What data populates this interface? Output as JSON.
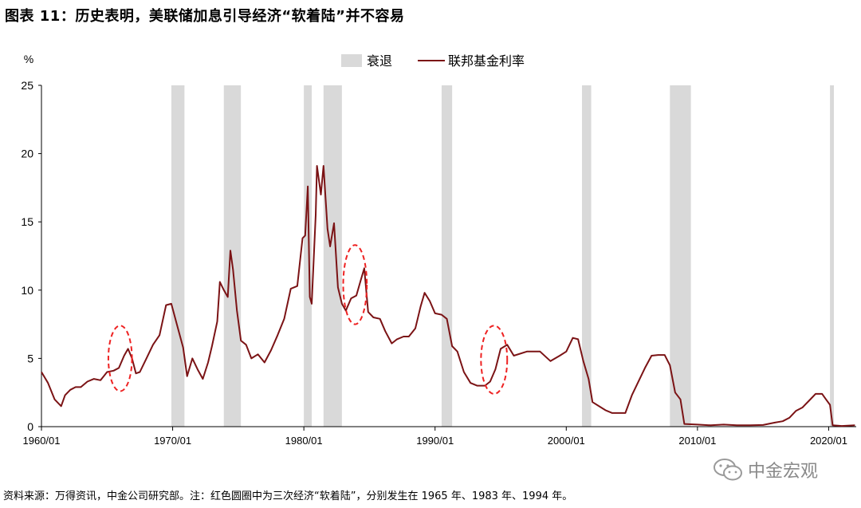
{
  "header": {
    "title": "图表 11：历史表明，美联储加息引导经济“软着陆”并不容易"
  },
  "footer": {
    "note": "资料来源：万得资讯，中金公司研究部。注：红色圆圈中为三次经济“软着陆”，分别发生在 1965 年、1983 年、1994 年。"
  },
  "watermark": {
    "text": "中金宏观",
    "icon": "wechat-icon"
  },
  "colors": {
    "line": "#7b1315",
    "recession": "#d9d9d9",
    "circle": "#ee2222"
  },
  "chart_data": {
    "type": "line",
    "ylabel": "%",
    "ylim": [
      0,
      25
    ],
    "yticks": [
      0,
      5,
      10,
      15,
      20,
      25
    ],
    "xlim": [
      1960.0,
      2022.1
    ],
    "xticks": [
      {
        "value": 1960,
        "label": "1960/01"
      },
      {
        "value": 1970,
        "label": "1970/01"
      },
      {
        "value": 1980,
        "label": "1980/01"
      },
      {
        "value": 1990,
        "label": "1990/01"
      },
      {
        "value": 2000,
        "label": "2000/01"
      },
      {
        "value": 2010,
        "label": "2010/01"
      },
      {
        "value": 2020,
        "label": "2020/01"
      }
    ],
    "legend": {
      "position": "top-center",
      "recession_label": "衰退",
      "series_label": "联邦基金利率"
    },
    "recessions": [
      [
        1969.9,
        1970.9
      ],
      [
        1973.9,
        1975.2
      ],
      [
        1980.0,
        1980.6
      ],
      [
        1981.5,
        1982.9
      ],
      [
        1990.5,
        1991.3
      ],
      [
        2001.2,
        2001.9
      ],
      [
        2007.9,
        2009.5
      ],
      [
        2020.1,
        2020.4
      ]
    ],
    "soft_landings": [
      {
        "year": 1965,
        "cx": 1966.0,
        "cy": 5.0,
        "rx": 0.9,
        "ry": 2.4
      },
      {
        "year": 1983,
        "cx": 1983.9,
        "cy": 10.4,
        "rx": 0.9,
        "ry": 2.9
      },
      {
        "year": 1994,
        "cx": 1994.5,
        "cy": 4.9,
        "rx": 1.0,
        "ry": 2.5
      }
    ],
    "series": [
      {
        "name": "联邦基金利率",
        "x": [
          1960.0,
          1960.5,
          1961.0,
          1961.5,
          1961.8,
          1962.2,
          1962.6,
          1963.0,
          1963.5,
          1964.0,
          1964.5,
          1965.0,
          1965.5,
          1965.9,
          1966.3,
          1966.6,
          1966.9,
          1967.2,
          1967.5,
          1968.0,
          1968.5,
          1969.0,
          1969.5,
          1969.9,
          1970.4,
          1970.8,
          1971.1,
          1971.5,
          1971.9,
          1972.3,
          1972.7,
          1973.0,
          1973.4,
          1973.6,
          1973.9,
          1974.2,
          1974.4,
          1974.6,
          1974.9,
          1975.2,
          1975.6,
          1976.0,
          1976.5,
          1977.0,
          1977.5,
          1978.0,
          1978.5,
          1979.0,
          1979.5,
          1979.9,
          1980.1,
          1980.3,
          1980.45,
          1980.6,
          1980.9,
          1981.0,
          1981.3,
          1981.5,
          1981.8,
          1982.0,
          1982.3,
          1982.6,
          1982.9,
          1983.2,
          1983.6,
          1984.0,
          1984.3,
          1984.6,
          1984.9,
          1985.3,
          1985.8,
          1986.2,
          1986.7,
          1987.1,
          1987.6,
          1988.0,
          1988.5,
          1988.9,
          1989.2,
          1989.6,
          1990.0,
          1990.5,
          1990.9,
          1991.3,
          1991.7,
          1992.2,
          1992.7,
          1993.2,
          1993.8,
          1994.2,
          1994.6,
          1995.0,
          1995.5,
          1996.0,
          1997.0,
          1998.0,
          1998.8,
          1999.5,
          2000.0,
          2000.5,
          2000.9,
          2001.3,
          2001.7,
          2002.0,
          2003.0,
          2003.5,
          2004.0,
          2004.5,
          2005.0,
          2006.0,
          2006.5,
          2007.0,
          2007.5,
          2007.9,
          2008.3,
          2008.7,
          2009.0,
          2010.0,
          2011.0,
          2012.0,
          2013.0,
          2014.0,
          2015.0,
          2015.9,
          2016.5,
          2017.0,
          2017.5,
          2018.0,
          2018.5,
          2019.0,
          2019.5,
          2019.8,
          2020.1,
          2020.3,
          2021.0,
          2022.0
        ],
        "y": [
          4.0,
          3.2,
          2.0,
          1.5,
          2.3,
          2.7,
          2.9,
          2.9,
          3.3,
          3.5,
          3.4,
          4.0,
          4.1,
          4.3,
          5.2,
          5.7,
          5.0,
          3.9,
          4.0,
          5.0,
          6.0,
          6.7,
          8.9,
          9.0,
          7.2,
          5.8,
          3.7,
          5.0,
          4.2,
          3.5,
          4.7,
          5.9,
          7.7,
          10.6,
          10.0,
          9.5,
          12.9,
          11.5,
          8.5,
          6.3,
          6.0,
          5.0,
          5.3,
          4.7,
          5.6,
          6.7,
          7.9,
          10.1,
          10.3,
          13.8,
          14.0,
          17.6,
          9.5,
          9.0,
          15.5,
          19.1,
          17.0,
          19.1,
          14.5,
          13.2,
          14.9,
          10.2,
          9.0,
          8.5,
          9.4,
          9.6,
          10.6,
          11.6,
          8.4,
          8.0,
          7.9,
          7.0,
          6.1,
          6.4,
          6.6,
          6.6,
          7.2,
          8.8,
          9.8,
          9.2,
          8.3,
          8.2,
          7.9,
          5.9,
          5.5,
          4.0,
          3.2,
          3.0,
          3.0,
          3.3,
          4.2,
          5.7,
          6.0,
          5.2,
          5.5,
          5.5,
          4.8,
          5.2,
          5.5,
          6.5,
          6.4,
          4.8,
          3.5,
          1.8,
          1.2,
          1.0,
          1.0,
          1.0,
          2.3,
          4.3,
          5.2,
          5.25,
          5.25,
          4.5,
          2.5,
          2.0,
          0.2,
          0.15,
          0.1,
          0.15,
          0.1,
          0.1,
          0.12,
          0.3,
          0.4,
          0.65,
          1.15,
          1.4,
          1.9,
          2.4,
          2.4,
          2.0,
          1.6,
          0.1,
          0.05,
          0.1
        ]
      }
    ]
  }
}
